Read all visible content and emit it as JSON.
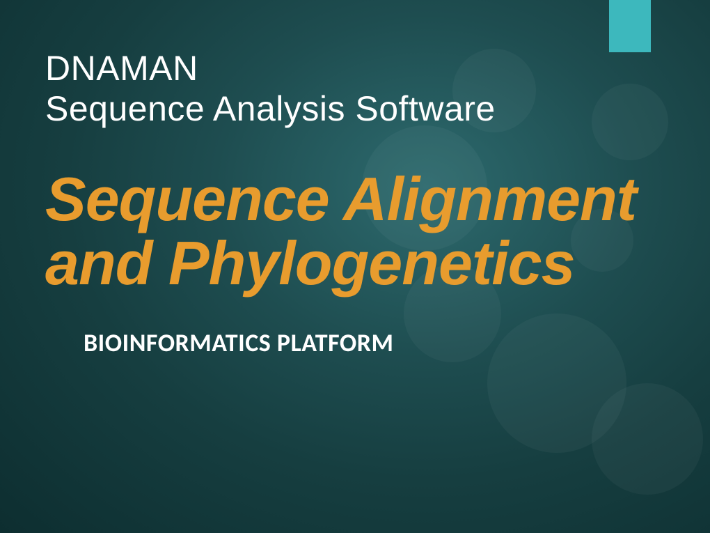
{
  "slide": {
    "header": {
      "line1": "DNAMAN",
      "line2": "Sequence Analysis Software",
      "color": "#ffffff",
      "fontsize": 50,
      "fontweight": 300
    },
    "main_title": {
      "text": "Sequence Alignment and Phylogenetics",
      "color": "#e89c2e",
      "fontsize": 88,
      "fontweight": "bold",
      "fontstyle": "italic"
    },
    "subtitle": {
      "text": "BIOINFORMATICS PLATFORM",
      "color": "#ffffff",
      "fontsize": 36,
      "fontweight": "bold"
    },
    "accent_bar": {
      "color": "#3db8bd",
      "width": 60,
      "height": 75
    },
    "background": {
      "gradient_center": "#2d6a6e",
      "gradient_mid": "#1e4d50",
      "gradient_outer": "#163e40",
      "gradient_edge": "#0d2e30",
      "bokeh_color": "rgba(255, 255, 255, 0.04)"
    }
  }
}
